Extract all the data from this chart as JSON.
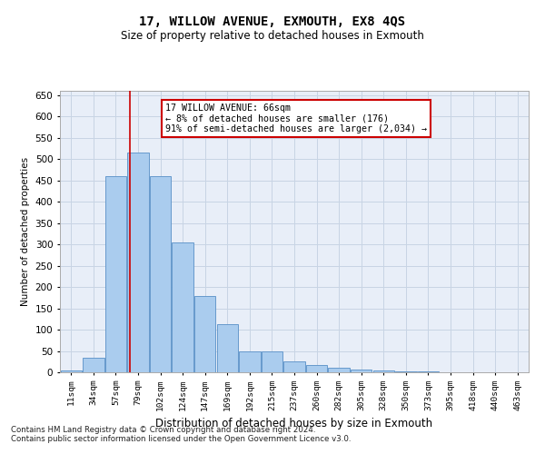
{
  "title": "17, WILLOW AVENUE, EXMOUTH, EX8 4QS",
  "subtitle": "Size of property relative to detached houses in Exmouth",
  "xlabel": "Distribution of detached houses by size in Exmouth",
  "ylabel": "Number of detached properties",
  "categories": [
    "11sqm",
    "34sqm",
    "57sqm",
    "79sqm",
    "102sqm",
    "124sqm",
    "147sqm",
    "169sqm",
    "192sqm",
    "215sqm",
    "237sqm",
    "260sqm",
    "282sqm",
    "305sqm",
    "328sqm",
    "350sqm",
    "373sqm",
    "395sqm",
    "418sqm",
    "440sqm",
    "463sqm"
  ],
  "values": [
    5,
    35,
    460,
    515,
    460,
    305,
    178,
    113,
    48,
    48,
    26,
    17,
    10,
    7,
    5,
    3,
    2,
    1,
    1,
    1,
    1
  ],
  "bar_color": "#aaccee",
  "bar_edge_color": "#6699cc",
  "grid_color": "#c8d4e4",
  "background_color": "#e8eef8",
  "annotation_text": "17 WILLOW AVENUE: 66sqm\n← 8% of detached houses are smaller (176)\n91% of semi-detached houses are larger (2,034) →",
  "annotation_box_color": "#ffffff",
  "annotation_box_edge": "#cc0000",
  "red_line_x": 2.62,
  "ylim": [
    0,
    660
  ],
  "yticks": [
    0,
    50,
    100,
    150,
    200,
    250,
    300,
    350,
    400,
    450,
    500,
    550,
    600,
    650
  ],
  "footnote1": "Contains HM Land Registry data © Crown copyright and database right 2024.",
  "footnote2": "Contains public sector information licensed under the Open Government Licence v3.0."
}
